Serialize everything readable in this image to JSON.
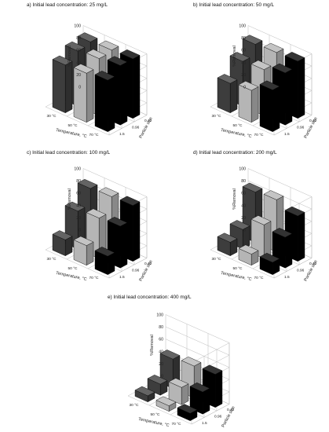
{
  "chart_data": [
    {
      "type": "bar3d",
      "title": "a) Initial lead concentration: 25 mg/L",
      "xlabel": "Temperature, °C",
      "ylabel": "%Removal",
      "zlabel": "Particle size",
      "x_categories": [
        "30 °C",
        "50 °C",
        "70 °C"
      ],
      "depth_categories": [
        "0.42",
        "0.96",
        "1.5"
      ],
      "zlim": [
        0,
        100
      ],
      "z_ticks": [
        0,
        20,
        40,
        60,
        80,
        100
      ],
      "series": [
        {
          "name": "0.42",
          "values": [
            94,
            96,
            97
          ]
        },
        {
          "name": "0.96",
          "values": [
            90,
            93,
            97
          ]
        },
        {
          "name": "1.5",
          "values": [
            78,
            80,
            84
          ]
        }
      ],
      "colors": [
        "#3d3d3d",
        "#b5b5b5",
        "#000000"
      ]
    },
    {
      "type": "bar3d",
      "title": "b) Initial lead concentration: 50 mg/L",
      "xlabel": "Temperature, °C",
      "ylabel": "%Removal",
      "zlabel": "Particle size",
      "x_categories": [
        "30 °C",
        "50 °C",
        "70 °C"
      ],
      "depth_categories": [
        "0.42",
        "0.96",
        "1.5"
      ],
      "zlim": [
        0,
        100
      ],
      "z_ticks": [
        0,
        20,
        40,
        60,
        80,
        100
      ],
      "series": [
        {
          "name": "0.42",
          "values": [
            90,
            92,
            93
          ]
        },
        {
          "name": "0.96",
          "values": [
            73,
            75,
            85
          ]
        },
        {
          "name": "1.5",
          "values": [
            48,
            52,
            68
          ]
        }
      ],
      "colors": [
        "#3d3d3d",
        "#b5b5b5",
        "#000000"
      ]
    },
    {
      "type": "bar3d",
      "title": "c) Initial lead concentration: 100 mg/L",
      "xlabel": "Temperature, °C",
      "ylabel": "%Removal",
      "zlabel": "Particle size",
      "x_categories": [
        "30 °C",
        "50 °C",
        "70 °C"
      ],
      "depth_categories": [
        "0.42",
        "0.96",
        "1.5"
      ],
      "zlim": [
        0,
        100
      ],
      "z_ticks": [
        0,
        20,
        40,
        60,
        80,
        100
      ],
      "series": [
        {
          "name": "0.42",
          "values": [
            88,
            90,
            91
          ]
        },
        {
          "name": "0.96",
          "values": [
            62,
            66,
            68
          ]
        },
        {
          "name": "1.5",
          "values": [
            26,
            32,
            30
          ]
        }
      ],
      "colors": [
        "#3d3d3d",
        "#b5b5b5",
        "#000000"
      ]
    },
    {
      "type": "bar3d",
      "title": "d) Initial lead concentration: 200 mg/L",
      "xlabel": "Temperature, °C",
      "ylabel": "%Removal",
      "zlabel": "Particle size",
      "x_categories": [
        "30 °C",
        "50 °C",
        "70 °C"
      ],
      "depth_categories": [
        "0.42",
        "0.96",
        "1.5"
      ],
      "zlim": [
        0,
        100
      ],
      "z_ticks": [
        0,
        20,
        40,
        60,
        80,
        100
      ],
      "series": [
        {
          "name": "0.42",
          "values": [
            82,
            85,
            74
          ]
        },
        {
          "name": "0.96",
          "values": [
            32,
            55,
            50
          ]
        },
        {
          "name": "1.5",
          "values": [
            22,
            18,
            20
          ]
        }
      ],
      "colors": [
        "#3d3d3d",
        "#b5b5b5",
        "#000000"
      ]
    },
    {
      "type": "bar3d",
      "title": "e) Initial lead concentration: 400 mg/L",
      "xlabel": "Temperature, °C",
      "ylabel": "%Removal",
      "zlabel": "Particle size",
      "x_categories": [
        "30 °C",
        "50 °C",
        "70 °C"
      ],
      "depth_categories": [
        "0.42",
        "0.96",
        "1.5"
      ],
      "zlim": [
        0,
        100
      ],
      "z_ticks": [
        0,
        20,
        40,
        60,
        80,
        100
      ],
      "series": [
        {
          "name": "0.42",
          "values": [
            48,
            52,
            54
          ]
        },
        {
          "name": "0.96",
          "values": [
            18,
            28,
            36
          ]
        },
        {
          "name": "1.5",
          "values": [
            10,
            9,
            12
          ]
        }
      ],
      "colors": [
        "#3d3d3d",
        "#b5b5b5",
        "#000000"
      ]
    }
  ]
}
